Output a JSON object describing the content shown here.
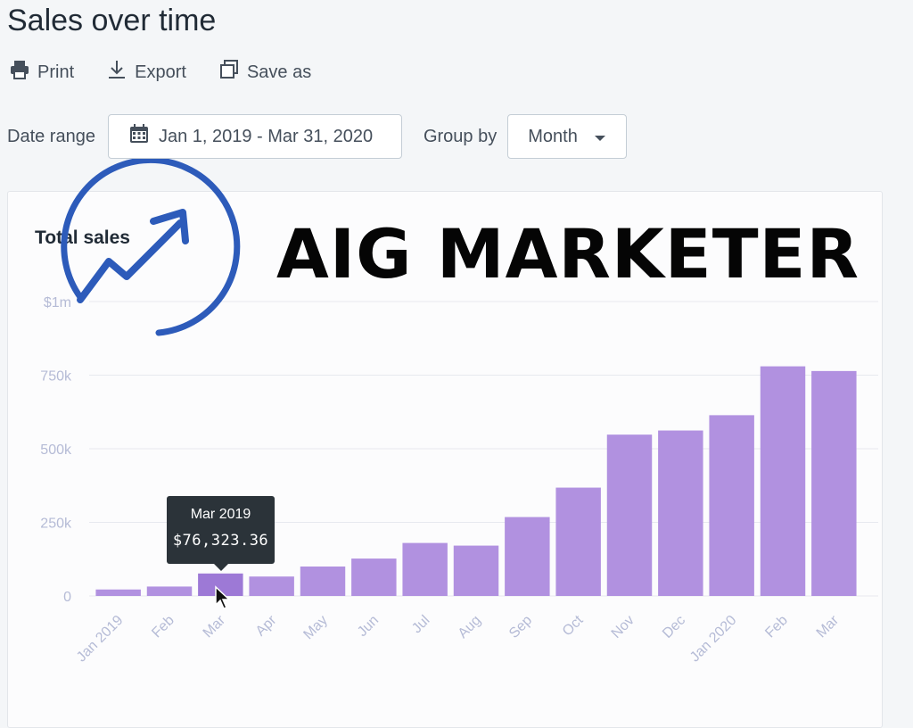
{
  "page": {
    "title": "Sales over time"
  },
  "toolbar": {
    "print_label": "Print",
    "export_label": "Export",
    "save_as_label": "Save as"
  },
  "filters": {
    "date_range_label": "Date range",
    "date_range_value": "Jan 1, 2019 - Mar 31, 2020",
    "group_by_label": "Group by",
    "group_by_value": "Month"
  },
  "card": {
    "title": "Total sales"
  },
  "watermark": {
    "text": "AIG MARKETER",
    "logo_color": "#2d5bba"
  },
  "tooltip": {
    "month": "Mar 2019",
    "value": "$76,323.36"
  },
  "colors": {
    "bar": "#b191e0",
    "bar_highlight": "#9d79d6",
    "axis_text": "#b5bbd6",
    "grid": "#e7e9ef"
  },
  "chart_data": {
    "type": "bar",
    "title": "Total sales",
    "categories": [
      "Jan 2019",
      "Feb",
      "Mar",
      "Apr",
      "May",
      "Jun",
      "Jul",
      "Aug",
      "Sep",
      "Oct",
      "Nov",
      "Dec",
      "Jan 2020",
      "Feb",
      "Mar"
    ],
    "values": [
      22000,
      32000,
      76323.36,
      66000,
      100000,
      127000,
      180000,
      171000,
      268000,
      368000,
      548000,
      562000,
      614000,
      780000,
      764000
    ],
    "ylim": [
      0,
      1000000
    ],
    "yticks": [
      0,
      250000,
      500000,
      750000,
      1000000
    ],
    "ytick_labels": [
      "0",
      "250k",
      "500k",
      "750k",
      "$1m"
    ],
    "highlight_index": 2,
    "grid": true,
    "xlabel": "",
    "ylabel": ""
  }
}
